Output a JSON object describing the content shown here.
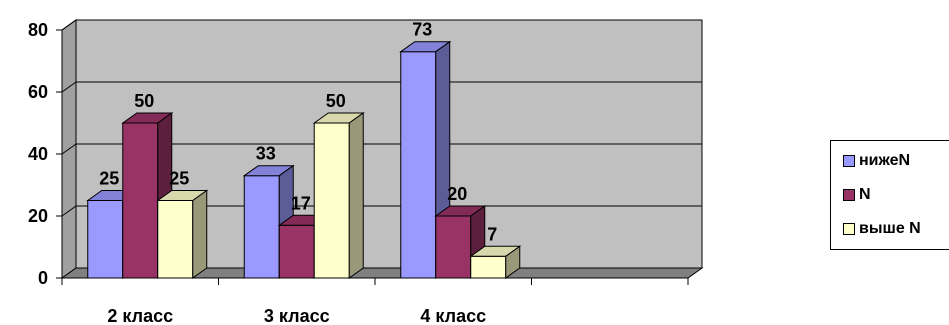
{
  "chart_data": {
    "type": "bar",
    "categories": [
      "2 класс",
      "3 класс",
      "4 класс",
      ""
    ],
    "series": [
      {
        "name": "нижеN",
        "values": [
          25,
          33,
          73,
          null
        ],
        "color": "#9999ff"
      },
      {
        "name": "N",
        "values": [
          50,
          17,
          20,
          null
        ],
        "color": "#993366"
      },
      {
        "name": "выше N",
        "values": [
          25,
          50,
          7,
          null
        ],
        "color": "#ffffcc"
      }
    ],
    "y_ticks": [
      "0",
      "20",
      "40",
      "60",
      "80"
    ],
    "ylim": [
      0,
      80
    ],
    "grid": true,
    "legend_position": "right",
    "style": "3d-column",
    "wall_color": "#c0c0c0"
  }
}
